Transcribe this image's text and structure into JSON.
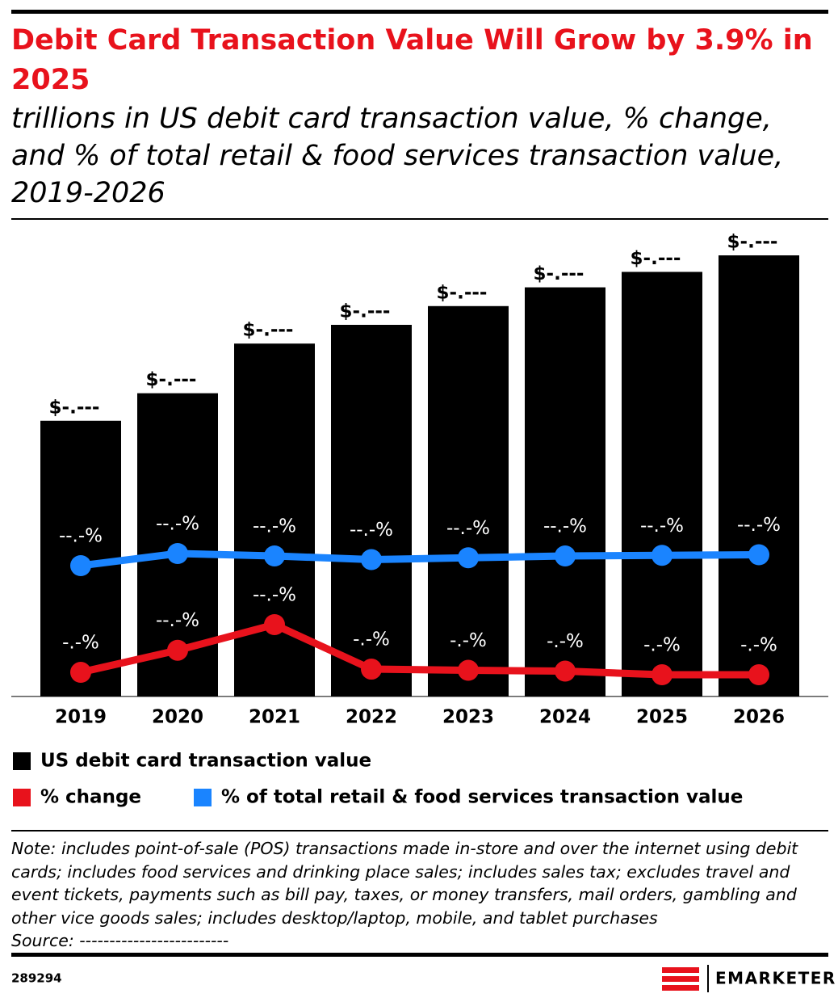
{
  "chart_data": {
    "type": "bar",
    "title": "Debit Card Transaction Value Will Grow by 3.9% in 2025",
    "subtitle": "trillions in US debit card transaction value, % change, and % of total retail & food services transaction value, 2019-2026",
    "categories": [
      "2019",
      "2020",
      "2021",
      "2022",
      "2023",
      "2024",
      "2025",
      "2026"
    ],
    "series": [
      {
        "name": "US debit card transaction value",
        "type": "bar",
        "color": "#000000",
        "values": [
          2.5,
          2.75,
          3.2,
          3.37,
          3.54,
          3.71,
          3.85,
          4.0
        ],
        "value_labels": [
          "$-.---",
          "$-.---",
          "$-.---",
          "$-.---",
          "$-.---",
          "$-.---",
          "$-.---",
          "$-.---"
        ]
      },
      {
        "name": "% change",
        "type": "line",
        "color": "#e8121c",
        "values": [
          4.5,
          10.0,
          16.4,
          5.3,
          5.0,
          4.8,
          3.9,
          3.9
        ],
        "value_labels": [
          "-.-%",
          "--.-%",
          "--.-%",
          "-.-%",
          "-.-%",
          "-.-%",
          "-.-%",
          "-.-%"
        ]
      },
      {
        "name": "% of total retail & food services transaction value",
        "type": "line",
        "color": "#1a84ff",
        "values": [
          39.0,
          41.0,
          40.6,
          40.0,
          40.3,
          40.6,
          40.7,
          40.8
        ],
        "value_labels": [
          "--.-%",
          "--.-%",
          "--.-%",
          "--.-%",
          "--.-%",
          "--.-%",
          "--.-%",
          "--.-%"
        ]
      }
    ],
    "note": "Note: includes point-of-sale (POS) transactions made in-store and over the internet using debit cards; includes food services and drinking place sales; includes sales tax; excludes travel and event tickets, payments such as bill pay, taxes, or money transfers, mail orders, gambling and other vice goods sales; includes desktop/laptop, mobile, and tablet purchases",
    "source": "Source: -------------------------"
  },
  "footer": {
    "id": "289294",
    "brand": "EMARKETER"
  }
}
